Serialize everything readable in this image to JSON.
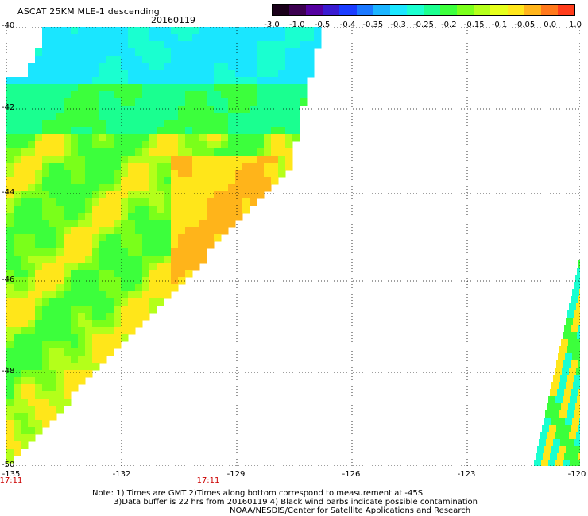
{
  "header": {
    "title": "ASCAT 25KM MLE-1 descending",
    "date": "20160119"
  },
  "colorbar": {
    "colors": [
      "#1a001a",
      "#3c0050",
      "#5500a0",
      "#3a1bd0",
      "#1a3cff",
      "#1a78ff",
      "#1ab4ff",
      "#1ae6ff",
      "#1affd0",
      "#1aff90",
      "#3cff3c",
      "#7aff1a",
      "#b4ff1a",
      "#e6ff1a",
      "#ffe61a",
      "#ffb41a",
      "#ff781a",
      "#ff3c1a"
    ],
    "labels": [
      "-3.0",
      "-1.0",
      "-0.5",
      "-0.4",
      "-0.35",
      "-0.3",
      "-0.25",
      "-0.2",
      "-0.15",
      "-0.1",
      "-0.05",
      "0.0",
      "1.0"
    ]
  },
  "axes": {
    "lat_ticks": [
      "-40",
      "-42",
      "-44",
      "-46",
      "-48",
      "-50"
    ],
    "lon_ticks": [
      "-135",
      "-132",
      "-129",
      "-126",
      "-123",
      "-120"
    ],
    "times": [
      "17:11",
      "17:11"
    ]
  },
  "notes": {
    "line1": "Note: 1) Times are GMT 2)Times along bottom correspond to measurement at -45S",
    "line2": "3)Data buffer is 22 hrs from 20160119 4) Black wind barbs indicate possible contamination",
    "line3": "NOAA/NESDIS/Center for Satellite Applications and Research"
  }
}
